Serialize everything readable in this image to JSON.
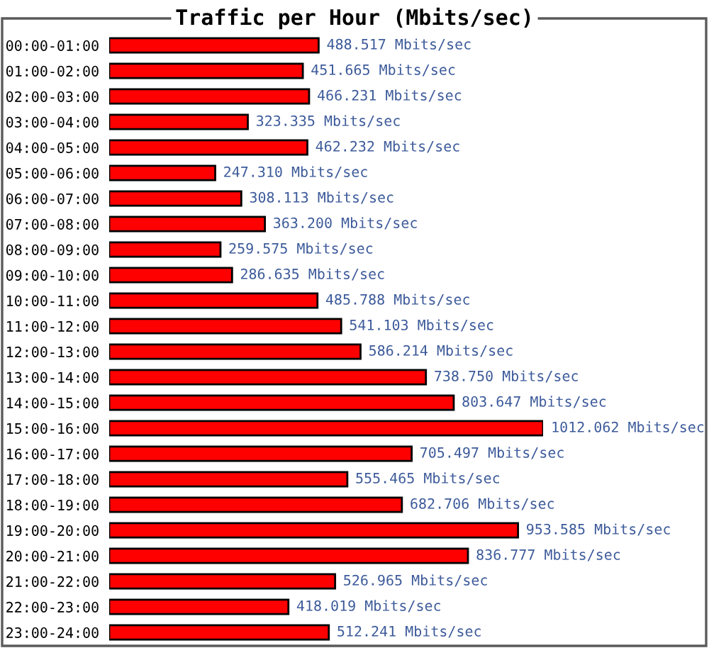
{
  "chart_data": {
    "type": "bar",
    "orientation": "horizontal",
    "title": "Traffic per Hour (Mbits/sec)",
    "categories": [
      "00:00-01:00",
      "01:00-02:00",
      "02:00-03:00",
      "03:00-04:00",
      "04:00-05:00",
      "05:00-06:00",
      "06:00-07:00",
      "07:00-08:00",
      "08:00-09:00",
      "09:00-10:00",
      "10:00-11:00",
      "11:00-12:00",
      "12:00-13:00",
      "13:00-14:00",
      "14:00-15:00",
      "15:00-16:00",
      "16:00-17:00",
      "17:00-18:00",
      "18:00-19:00",
      "19:00-20:00",
      "20:00-21:00",
      "21:00-22:00",
      "22:00-23:00",
      "23:00-24:00"
    ],
    "values": [
      488.517,
      451.665,
      466.231,
      323.335,
      462.232,
      247.31,
      308.113,
      363.2,
      259.575,
      286.635,
      485.788,
      541.103,
      586.214,
      738.75,
      803.647,
      1012.062,
      705.497,
      555.465,
      682.706,
      953.585,
      836.777,
      526.965,
      418.019,
      512.241
    ],
    "value_labels": [
      "488.517 Mbits/sec",
      "451.665 Mbits/sec",
      "466.231 Mbits/sec",
      "323.335 Mbits/sec",
      "462.232 Mbits/sec",
      "247.310 Mbits/sec",
      "308.113 Mbits/sec",
      "363.200 Mbits/sec",
      "259.575 Mbits/sec",
      "286.635 Mbits/sec",
      "485.788 Mbits/sec",
      "541.103 Mbits/sec",
      "586.214 Mbits/sec",
      "738.750 Mbits/sec",
      "803.647 Mbits/sec",
      "1012.062 Mbits/sec",
      "705.497 Mbits/sec",
      "555.465 Mbits/sec",
      "682.706 Mbits/sec",
      "953.585 Mbits/sec",
      "836.777 Mbits/sec",
      "526.965 Mbits/sec",
      "418.019 Mbits/sec",
      "512.241 Mbits/sec"
    ],
    "color": "#ff0000",
    "tick_labels": "y"
  }
}
